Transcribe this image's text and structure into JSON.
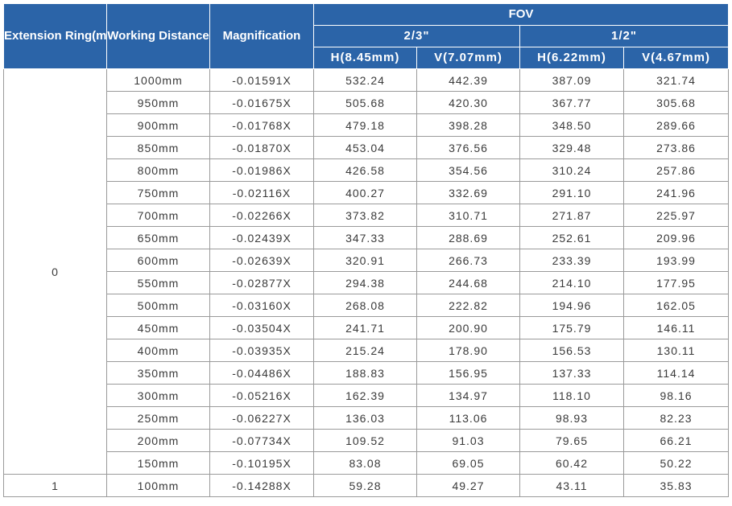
{
  "header": {
    "extension_ring": "Extension Ring(mm)",
    "working_distance": "Working Distance",
    "magnification": "Magnification",
    "fov": "FOV",
    "sensors": [
      "2/3\"",
      "1/2\""
    ],
    "columns": [
      "H(8.45mm)",
      "V(7.07mm)",
      "H(6.22mm)",
      "V(4.67mm)"
    ]
  },
  "groups": [
    {
      "ring": "0",
      "rows": [
        {
          "wd": "1000mm",
          "mag": "-0.01591X",
          "vals": [
            "532.24",
            "442.39",
            "387.09",
            "321.74"
          ]
        },
        {
          "wd": "950mm",
          "mag": "-0.01675X",
          "vals": [
            "505.68",
            "420.30",
            "367.77",
            "305.68"
          ]
        },
        {
          "wd": "900mm",
          "mag": "-0.01768X",
          "vals": [
            "479.18",
            "398.28",
            "348.50",
            "289.66"
          ]
        },
        {
          "wd": "850mm",
          "mag": "-0.01870X",
          "vals": [
            "453.04",
            "376.56",
            "329.48",
            "273.86"
          ]
        },
        {
          "wd": "800mm",
          "mag": "-0.01986X",
          "vals": [
            "426.58",
            "354.56",
            "310.24",
            "257.86"
          ]
        },
        {
          "wd": "750mm",
          "mag": "-0.02116X",
          "vals": [
            "400.27",
            "332.69",
            "291.10",
            "241.96"
          ]
        },
        {
          "wd": "700mm",
          "mag": "-0.02266X",
          "vals": [
            "373.82",
            "310.71",
            "271.87",
            "225.97"
          ]
        },
        {
          "wd": "650mm",
          "mag": "-0.02439X",
          "vals": [
            "347.33",
            "288.69",
            "252.61",
            "209.96"
          ]
        },
        {
          "wd": "600mm",
          "mag": "-0.02639X",
          "vals": [
            "320.91",
            "266.73",
            "233.39",
            "193.99"
          ]
        },
        {
          "wd": "550mm",
          "mag": "-0.02877X",
          "vals": [
            "294.38",
            "244.68",
            "214.10",
            "177.95"
          ]
        },
        {
          "wd": "500mm",
          "mag": "-0.03160X",
          "vals": [
            "268.08",
            "222.82",
            "194.96",
            "162.05"
          ]
        },
        {
          "wd": "450mm",
          "mag": "-0.03504X",
          "vals": [
            "241.71",
            "200.90",
            "175.79",
            "146.11"
          ]
        },
        {
          "wd": "400mm",
          "mag": "-0.03935X",
          "vals": [
            "215.24",
            "178.90",
            "156.53",
            "130.11"
          ]
        },
        {
          "wd": "350mm",
          "mag": "-0.04486X",
          "vals": [
            "188.83",
            "156.95",
            "137.33",
            "114.14"
          ]
        },
        {
          "wd": "300mm",
          "mag": "-0.05216X",
          "vals": [
            "162.39",
            "134.97",
            "118.10",
            "98.16"
          ]
        },
        {
          "wd": "250mm",
          "mag": "-0.06227X",
          "vals": [
            "136.03",
            "113.06",
            "98.93",
            "82.23"
          ]
        },
        {
          "wd": "200mm",
          "mag": "-0.07734X",
          "vals": [
            "109.52",
            "91.03",
            "79.65",
            "66.21"
          ]
        },
        {
          "wd": "150mm",
          "mag": "-0.10195X",
          "vals": [
            "83.08",
            "69.05",
            "60.42",
            "50.22"
          ]
        }
      ]
    },
    {
      "ring": "1",
      "rows": [
        {
          "wd": "100mm",
          "mag": "-0.14288X",
          "vals": [
            "59.28",
            "49.27",
            "43.11",
            "35.83"
          ]
        }
      ]
    }
  ],
  "colors": {
    "header_bg": "#2b64a8",
    "header_text": "#ffffff",
    "body_text": "#3a3a3a",
    "border": "#9a9a9a"
  }
}
